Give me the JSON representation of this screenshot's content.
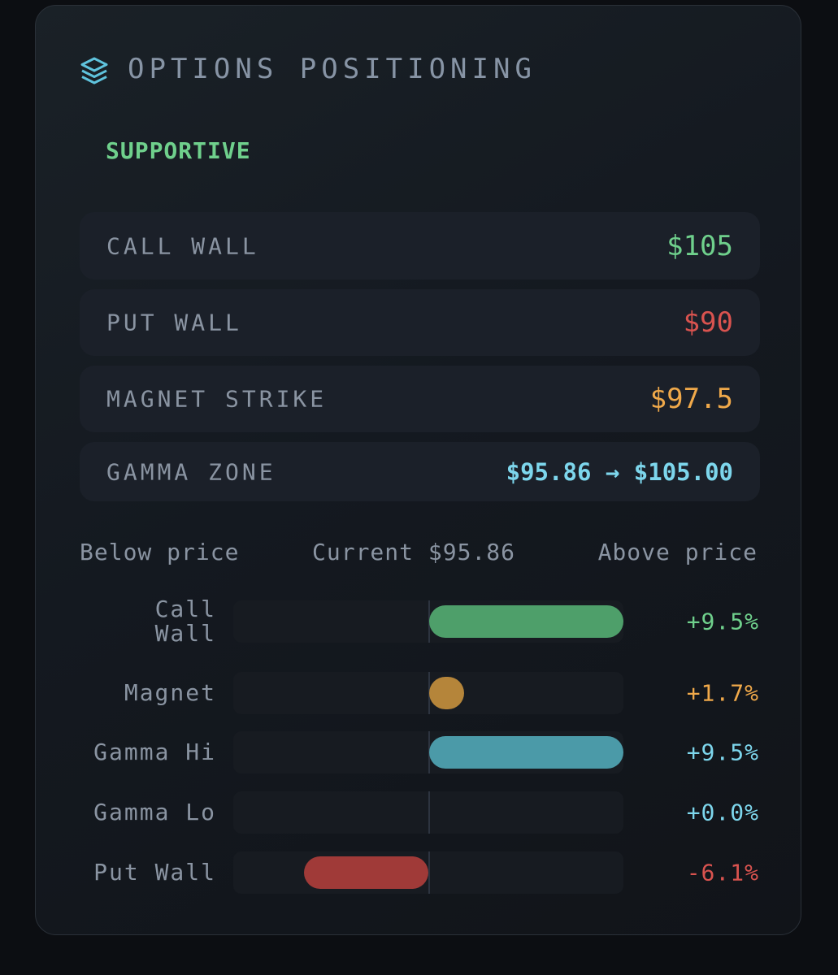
{
  "header": {
    "title": "OPTIONS POSITIONING"
  },
  "status": "SUPPORTIVE",
  "levels": [
    {
      "label": "CALL WALL",
      "value": "$105",
      "color": "#6fd08c"
    },
    {
      "label": "PUT WALL",
      "value": "$90",
      "color": "#d9534f"
    },
    {
      "label": "MAGNET STRIKE",
      "value": "$97.5",
      "color": "#f0a94a"
    },
    {
      "label": "GAMMA ZONE",
      "value": "$95.86 → $105.00",
      "color": "#7dd6ec"
    }
  ],
  "chart_data": {
    "type": "bar",
    "orientation": "horizontal",
    "header_labels": [
      "Below price",
      "Current $95.86",
      "Above price"
    ],
    "categories": [
      "Call Wall",
      "Magnet",
      "Gamma Hi",
      "Gamma Lo",
      "Put Wall"
    ],
    "values": [
      9.5,
      1.7,
      9.5,
      0.0,
      -6.1
    ],
    "value_labels": [
      "+9.5%",
      "+1.7%",
      "+9.5%",
      "+0.0%",
      "-6.1%"
    ],
    "colors": [
      "#4e9f6a",
      "#b5853a",
      "#4b9aa8",
      "#4b9aa8",
      "#a03a38"
    ],
    "label_colors": [
      "#6fd08c",
      "#f0a94a",
      "#7dd6ec",
      "#7dd6ec",
      "#d9534f"
    ]
  }
}
